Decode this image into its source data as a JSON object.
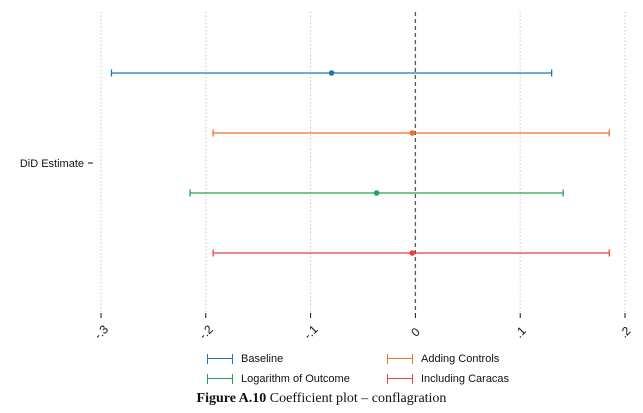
{
  "chart_data": {
    "type": "coefficient-plot",
    "ylabel_tick": "DiD Estimate",
    "xticks": [
      "-.3",
      "-.2",
      "-.1",
      "0",
      ".1",
      ".2"
    ],
    "xtick_values": [
      -0.3,
      -0.2,
      -0.1,
      0,
      0.1,
      0.2
    ],
    "xlim": [
      -0.3,
      0.2
    ],
    "reference_line": 0,
    "grid": "vertical dotted",
    "legend_position": "bottom",
    "series": [
      {
        "name": "Baseline",
        "estimate": -0.08,
        "ci_low": -0.29,
        "ci_high": 0.13,
        "color": "#1f78b4"
      },
      {
        "name": "Adding Controls",
        "estimate": -0.003,
        "ci_low": -0.193,
        "ci_high": 0.185,
        "color": "#f0722b"
      },
      {
        "name": "Logarithm of Outcome",
        "estimate": -0.037,
        "ci_low": -0.215,
        "ci_high": 0.141,
        "color": "#22a35a"
      },
      {
        "name": "Including Caracas",
        "estimate": -0.003,
        "ci_low": -0.193,
        "ci_high": 0.185,
        "color": "#e8423c"
      }
    ]
  },
  "legend": {
    "items": [
      {
        "label": "Baseline",
        "color": "#1f78b4"
      },
      {
        "label": "Adding Controls",
        "color": "#f0722b"
      },
      {
        "label": "Logarithm of Outcome",
        "color": "#22a35a"
      },
      {
        "label": "Including Caracas",
        "color": "#e8423c"
      }
    ]
  },
  "caption": {
    "label": "Figure A.10",
    "text": "Coefficient plot – conflagration"
  }
}
